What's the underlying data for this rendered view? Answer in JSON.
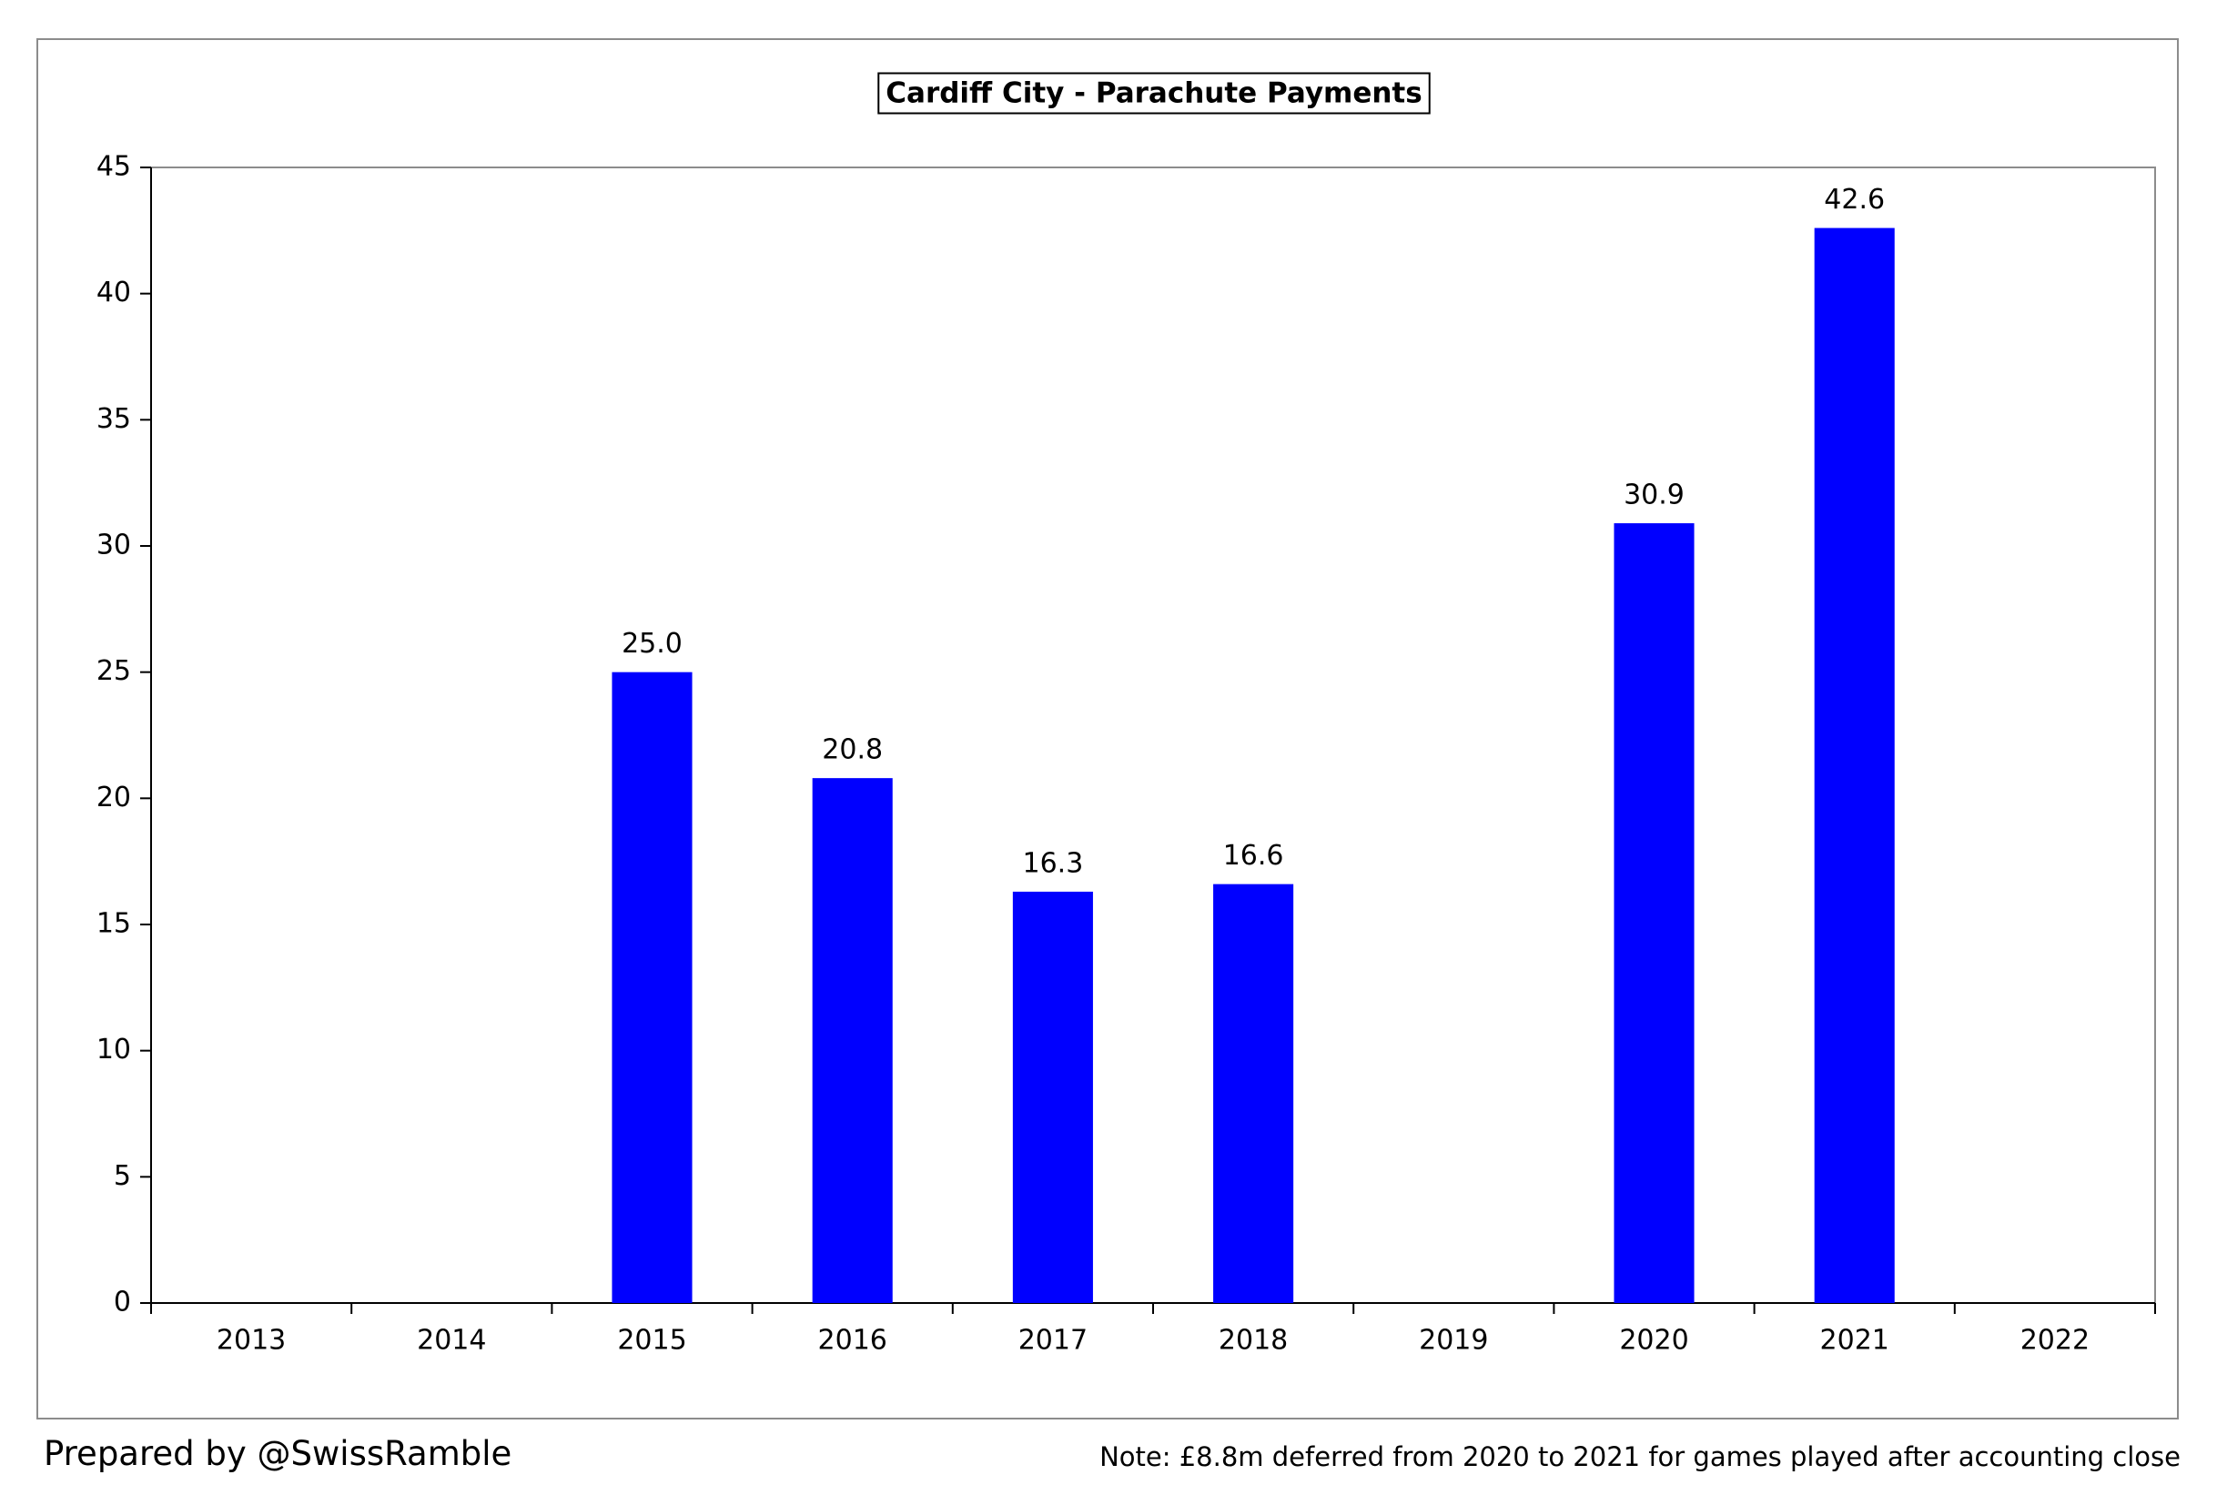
{
  "chart_data": {
    "type": "bar",
    "title": "Cardiff City - Parachute Payments",
    "categories": [
      "2013",
      "2014",
      "2015",
      "2016",
      "2017",
      "2018",
      "2019",
      "2020",
      "2021",
      "2022"
    ],
    "series": [
      {
        "values": [
          null,
          null,
          25.0,
          20.8,
          16.3,
          16.6,
          null,
          30.9,
          42.6,
          null
        ]
      }
    ],
    "data_labels": [
      "",
      "",
      "25.0",
      "20.8",
      "16.3",
      "16.6",
      "",
      "30.9",
      "42.6",
      ""
    ],
    "ylim": [
      0,
      45
    ],
    "yticks": [
      "0",
      "5",
      "10",
      "15",
      "20",
      "25",
      "30",
      "35",
      "40",
      "45"
    ],
    "xlabel": "",
    "ylabel": "",
    "grid": false,
    "bar_color": "#0000ff"
  },
  "footer": {
    "credit": "Prepared by @SwissRamble",
    "note": "Note: £8.8m deferred from 2020 to 2021 for games played after accounting close"
  }
}
